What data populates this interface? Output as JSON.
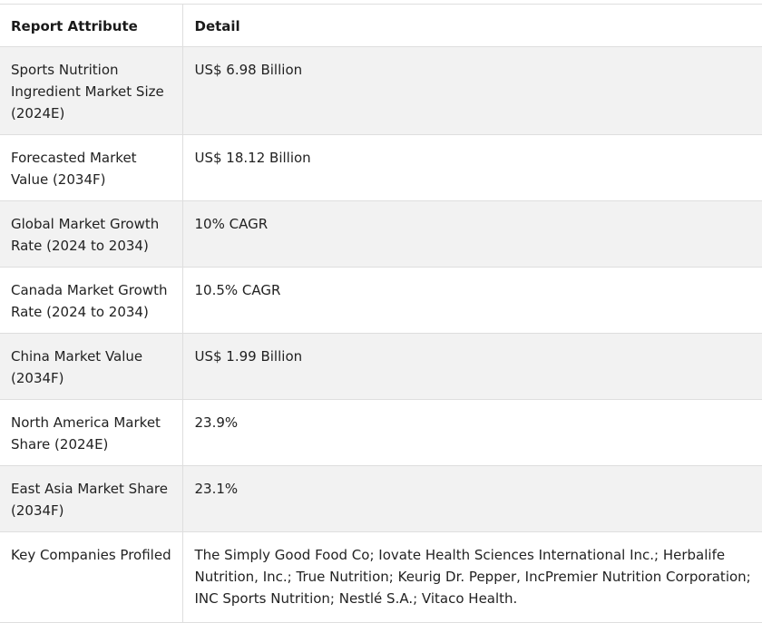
{
  "table": {
    "headers": [
      "Report Attribute",
      "Detail"
    ],
    "rows": [
      {
        "attribute": "Sports Nutrition Ingredient Market Size (2024E)",
        "detail": "US$ 6.98 Billion"
      },
      {
        "attribute": "Forecasted Market Value (2034F)",
        "detail": "US$ 18.12 Billion"
      },
      {
        "attribute": "Global Market Growth Rate (2024 to 2034)",
        "detail": "10% CAGR"
      },
      {
        "attribute": "Canada Market Growth Rate (2024 to 2034)",
        "detail": "10.5% CAGR"
      },
      {
        "attribute": "China Market Value (2034F)",
        "detail": "US$ 1.99 Billion"
      },
      {
        "attribute": "North America Market Share (2024E)",
        "detail": "23.9%"
      },
      {
        "attribute": "East Asia Market Share (2034F)",
        "detail": "23.1%"
      },
      {
        "attribute": "Key Companies Profiled",
        "detail": "The Simply Good Food Co; Iovate Health Sciences International Inc.; Herbalife Nutrition, Inc.; True Nutrition; Keurig Dr. Pepper, IncPremier Nutrition Corporation; INC Sports Nutrition; Nestlé S.A.; Vitaco Health."
      }
    ]
  }
}
